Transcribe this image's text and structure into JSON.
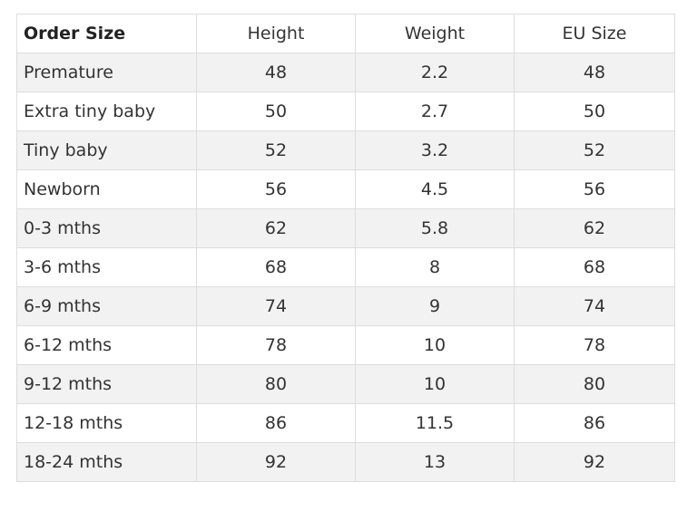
{
  "table": {
    "headers": [
      "Order Size",
      "Height",
      "Weight",
      "EU Size"
    ],
    "rows": [
      [
        "Premature",
        "48",
        "2.2",
        "48"
      ],
      [
        "Extra tiny baby",
        "50",
        "2.7",
        "50"
      ],
      [
        "Tiny baby",
        "52",
        "3.2",
        "52"
      ],
      [
        "Newborn",
        "56",
        "4.5",
        "56"
      ],
      [
        "0-3 mths",
        "62",
        "5.8",
        "62"
      ],
      [
        "3-6 mths",
        "68",
        "8",
        "68"
      ],
      [
        "6-9 mths",
        "74",
        "9",
        "74"
      ],
      [
        "6-12 mths",
        "78",
        "10",
        "78"
      ],
      [
        "9-12 mths",
        "80",
        "10",
        "80"
      ],
      [
        "12-18 mths",
        "86",
        "11.5",
        "86"
      ],
      [
        "18-24 mths",
        "92",
        "13",
        "92"
      ]
    ]
  }
}
